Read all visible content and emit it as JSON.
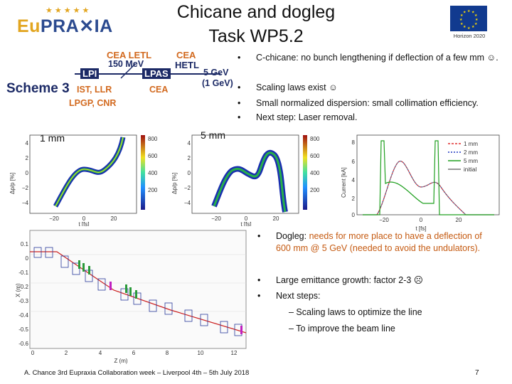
{
  "header": {
    "logo": "EuPRAXIA",
    "title_line1": "Chicane and dogleg",
    "title_line2": "Task WP5.2",
    "funding_caption": "Horizon 2020"
  },
  "scheme": {
    "label": "Scheme 3",
    "cea_letl": "CEA LETL",
    "energy_150": "150 MeV",
    "lpi": "LPI",
    "lpas": "LPAS",
    "cea_hetl_1": "CEA",
    "cea_hetl_2": "HETL",
    "energy_5": "5 GeV",
    "energy_1": "(1 GeV)",
    "ist_llr": "IST, LLR",
    "cea": "CEA",
    "lpgp_cnr": "LPGP, CNR"
  },
  "top_bullets": [
    "C-chicane: no bunch lengthening if deflection of a few mm ☺.",
    "Scaling laws exist ☺",
    "Small normalized dispersion: small collimation efficiency.",
    "Next step: Laser removal."
  ],
  "plots": {
    "label_1mm": "1 mm",
    "label_5mm": "5 mm",
    "ylabel_dpp": "Δp/p [%]",
    "ylabel_current": "Current [kA]",
    "xlabel_t": "t [fs]",
    "x_ticks": [
      "−20",
      "0",
      "20"
    ],
    "y_ticks_dpp": [
      "4",
      "2",
      "0",
      "−2",
      "−4"
    ],
    "colorbar_ticks": [
      "800",
      "600",
      "400",
      "200"
    ],
    "current_ticks": [
      "8",
      "6",
      "4",
      "2",
      "0"
    ],
    "legend": [
      "1 mm",
      "2 mm",
      "5 mm",
      "initial"
    ],
    "legend_colors": [
      "#e03030",
      "#2038c0",
      "#20a020",
      "#777777"
    ]
  },
  "beamline_plot": {
    "xlabel": "Z (m)",
    "ylabel": "X (m)",
    "x_ticks": [
      "0",
      "2",
      "4",
      "6",
      "8",
      "10",
      "12"
    ],
    "y_ticks": [
      "0.1",
      "0",
      "-0.1",
      "-0.2",
      "-0.3",
      "-0.4",
      "-0.5",
      "-0.6"
    ]
  },
  "dogleg": {
    "bullet1_prefix": "Dogleg: ",
    "bullet1_highlight": "needs for more place to have a deflection of 600 mm @ 5 GeV (needed to avoid the undulators).",
    "bullet2": "Large emittance growth: factor 2-3 ☹",
    "bullet3": "Next steps:",
    "sub1": "–  Scaling laws to optimize the line",
    "sub2": "–  To improve the beam line"
  },
  "footer": {
    "text": "A. Chance 3rd Eupraxia Collaboration week – Liverpool 4th – 5th July 2018",
    "page": "7"
  }
}
